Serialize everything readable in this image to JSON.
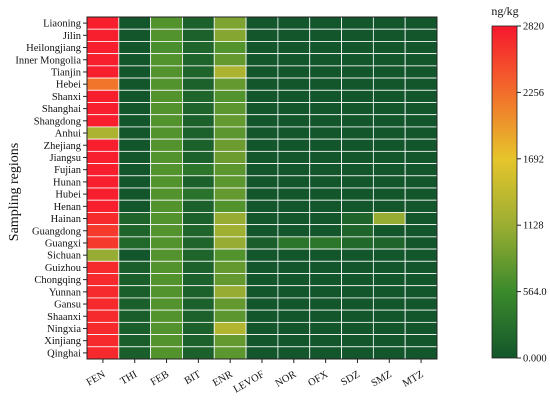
{
  "chart_data": {
    "type": "heatmap",
    "title": "",
    "xlabel": "",
    "ylabel": "Sampling regions",
    "unit_label": "ng/kg",
    "x_categories": [
      "FEN",
      "THI",
      "FEB",
      "BIT",
      "ENR",
      "LEVOF",
      "NOR",
      "OFX",
      "SDZ",
      "SMZ",
      "MTZ"
    ],
    "y_categories": [
      "Liaoning",
      "Jilin",
      "Heilongjiang",
      "Inner Mongolia",
      "Tianjin",
      "Hebei",
      "Shanxi",
      "Shanghai",
      "Shangdong",
      "Anhui",
      "Zhejiang",
      "Jiangsu",
      "Fujian",
      "Hunan",
      "Hubei",
      "Henan",
      "Hainan",
      "Guangdong",
      "Guangxi",
      "Sichuan",
      "Guizhou",
      "Chongqing",
      "Yunnan",
      "Gansu",
      "Shaanxi",
      "Ningxia",
      "Xinjiang",
      "Qinghai"
    ],
    "values": [
      [
        2780,
        0,
        700,
        120,
        950,
        0,
        0,
        0,
        0,
        0,
        0
      ],
      [
        2780,
        0,
        700,
        120,
        1000,
        0,
        0,
        0,
        0,
        0,
        0
      ],
      [
        2780,
        0,
        650,
        150,
        700,
        0,
        0,
        0,
        0,
        0,
        0
      ],
      [
        2780,
        0,
        700,
        150,
        800,
        0,
        0,
        0,
        0,
        0,
        0
      ],
      [
        2780,
        0,
        700,
        150,
        1250,
        0,
        0,
        0,
        0,
        0,
        0
      ],
      [
        2200,
        0,
        700,
        120,
        800,
        0,
        0,
        0,
        0,
        0,
        0
      ],
      [
        2780,
        0,
        700,
        150,
        700,
        0,
        0,
        0,
        0,
        0,
        0
      ],
      [
        2780,
        0,
        700,
        150,
        750,
        0,
        0,
        0,
        0,
        0,
        0
      ],
      [
        2780,
        0,
        700,
        120,
        800,
        0,
        0,
        0,
        0,
        0,
        0
      ],
      [
        1250,
        0,
        700,
        120,
        750,
        0,
        0,
        0,
        0,
        0,
        0
      ],
      [
        2780,
        0,
        700,
        120,
        850,
        0,
        0,
        0,
        0,
        0,
        0
      ],
      [
        2780,
        0,
        700,
        120,
        850,
        0,
        0,
        0,
        0,
        0,
        0
      ],
      [
        2780,
        0,
        700,
        350,
        750,
        0,
        0,
        0,
        0,
        0,
        0
      ],
      [
        2780,
        0,
        700,
        120,
        750,
        0,
        0,
        0,
        0,
        0,
        0
      ],
      [
        2780,
        0,
        700,
        300,
        800,
        0,
        0,
        0,
        0,
        0,
        0
      ],
      [
        2780,
        0,
        700,
        120,
        700,
        0,
        0,
        0,
        0,
        0,
        0
      ],
      [
        2700,
        150,
        700,
        120,
        1100,
        0,
        0,
        0,
        150,
        1100,
        0
      ],
      [
        2600,
        150,
        700,
        150,
        1150,
        0,
        0,
        0,
        150,
        0,
        0
      ],
      [
        2600,
        200,
        700,
        150,
        1100,
        100,
        350,
        350,
        200,
        150,
        0
      ],
      [
        1100,
        0,
        700,
        150,
        700,
        0,
        0,
        0,
        0,
        0,
        0
      ],
      [
        2700,
        100,
        700,
        120,
        800,
        0,
        0,
        0,
        0,
        0,
        0
      ],
      [
        2700,
        100,
        700,
        120,
        800,
        0,
        0,
        0,
        0,
        0,
        0
      ],
      [
        2700,
        100,
        700,
        120,
        1100,
        0,
        0,
        0,
        0,
        0,
        0
      ],
      [
        2700,
        100,
        700,
        120,
        800,
        0,
        0,
        0,
        0,
        0,
        0
      ],
      [
        2700,
        100,
        700,
        120,
        750,
        0,
        0,
        0,
        0,
        0,
        0
      ],
      [
        2700,
        100,
        700,
        120,
        1300,
        0,
        0,
        0,
        0,
        0,
        0
      ],
      [
        2700,
        100,
        700,
        120,
        800,
        0,
        0,
        0,
        0,
        0,
        0
      ],
      [
        2700,
        100,
        700,
        120,
        750,
        0,
        0,
        0,
        0,
        0,
        0
      ]
    ],
    "colorbar": {
      "min": 0,
      "max": 2820,
      "ticks": [
        "0.000",
        "564.0",
        "1128",
        "1692",
        "2256",
        "2820"
      ],
      "tick_values": [
        0,
        564,
        1128,
        1692,
        2256,
        2820
      ],
      "colors": [
        "#13562b",
        "#3b8a2c",
        "#9bae32",
        "#e6c52c",
        "#f26d2b",
        "#f7182e"
      ]
    },
    "grid": true
  }
}
